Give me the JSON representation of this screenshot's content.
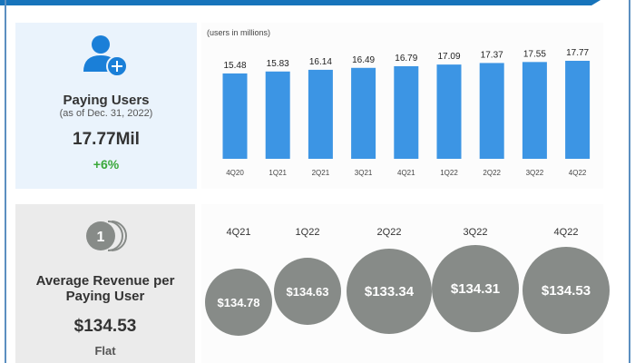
{
  "paying_users": {
    "title": "Paying Users",
    "subtitle": "(as of Dec. 31, 2022)",
    "value": "17.77Mil",
    "change": "+6%",
    "icon": "user-plus-icon",
    "change_color": "#3aa83a"
  },
  "arpu": {
    "title_line1": "Average Revenue per",
    "title_line2": "Paying User",
    "value": "$134.53",
    "change": "Flat",
    "icon": "coin-stack-icon"
  },
  "chart_data": [
    {
      "type": "bar",
      "note_label": "(users in millions)",
      "categories": [
        "4Q20",
        "1Q21",
        "2Q21",
        "3Q21",
        "4Q21",
        "1Q22",
        "2Q22",
        "3Q22",
        "4Q22"
      ],
      "values": [
        15.48,
        15.83,
        16.14,
        16.49,
        16.79,
        17.09,
        17.37,
        17.55,
        17.77
      ],
      "data_labels": [
        "15.48",
        "15.83",
        "16.14",
        "16.49",
        "16.79",
        "17.09",
        "17.37",
        "17.55",
        "17.77"
      ],
      "ylim": [
        0,
        18
      ],
      "grid": false,
      "color": "#3c95e4"
    },
    {
      "type": "bubble",
      "categories": [
        "4Q21",
        "1Q22",
        "2Q22",
        "3Q22",
        "4Q22"
      ],
      "values": [
        134.78,
        134.63,
        133.34,
        134.31,
        134.53
      ],
      "data_labels": [
        "$134.78",
        "$134.63",
        "$133.34",
        "$134.31",
        "$134.53"
      ],
      "color": "#878b88"
    }
  ]
}
